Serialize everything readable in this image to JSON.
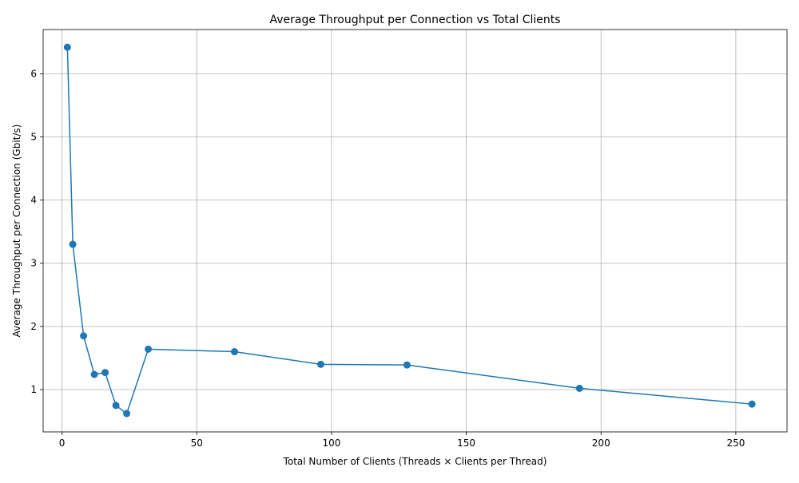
{
  "chart_data": {
    "type": "line",
    "title": "Average Throughput per Connection vs Total Clients",
    "xlabel": "Total Number of Clients (Threads × Clients per Thread)",
    "ylabel": "Average Throughput per Connection (Gbit/s)",
    "xlim": [
      -7,
      269
    ],
    "ylim": [
      0.33,
      6.7
    ],
    "xticks": [
      0,
      50,
      100,
      150,
      200,
      250
    ],
    "yticks": [
      1,
      2,
      3,
      4,
      5,
      6
    ],
    "grid": true,
    "marker": "circle",
    "series": [
      {
        "color": "#1f77b4",
        "x": [
          2,
          4,
          8,
          12,
          16,
          20,
          24,
          32,
          64,
          96,
          128,
          192,
          256
        ],
        "y": [
          6.42,
          3.3,
          1.85,
          1.24,
          1.27,
          0.75,
          0.62,
          1.64,
          1.6,
          1.4,
          1.39,
          1.02,
          0.77
        ]
      }
    ]
  }
}
